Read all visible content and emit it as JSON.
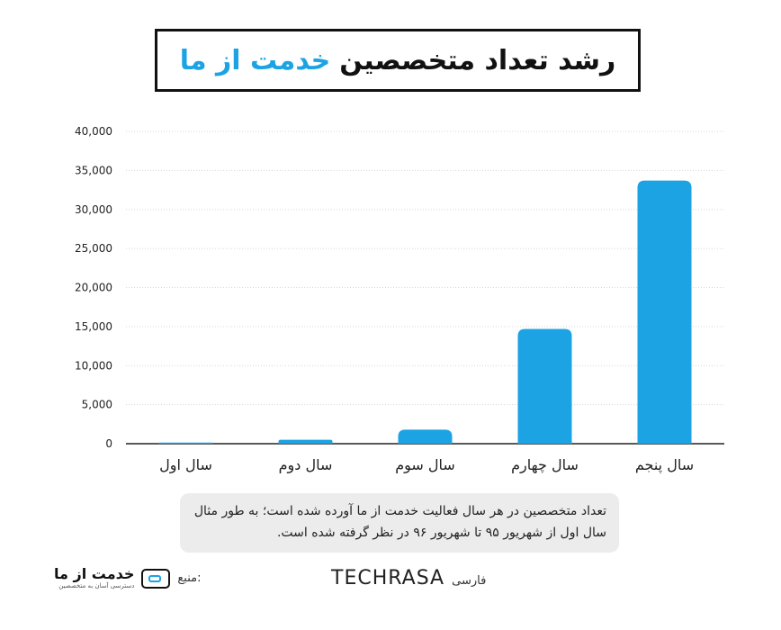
{
  "header": {
    "title_part1": "رشد تعداد متخصصین",
    "title_part2": "خدمت از ما"
  },
  "chart_data": {
    "type": "bar",
    "categories": [
      "سال اول",
      "سال دوم",
      "سال سوم",
      "سال چهارم",
      "سال پنجم"
    ],
    "values": [
      150,
      500,
      1800,
      14700,
      33700
    ],
    "ylim": [
      0,
      40000
    ],
    "yticks": [
      0,
      5000,
      10000,
      15000,
      20000,
      25000,
      30000,
      35000,
      40000
    ],
    "ytick_labels": [
      "0",
      "5,000",
      "10,000",
      "15,000",
      "20,000",
      "25,000",
      "30,000",
      "35,000",
      "40,000"
    ],
    "grid": true,
    "bar_color": "#1ca3e3"
  },
  "note": {
    "text": "تعداد متخصصین در هر سال فعالیت خدمت از ما آورده شده است؛ به طور مثال سال اول از شهریور ۹۵ تا شهریور ۹۶ در نظر گرفته شده است."
  },
  "footer": {
    "brand": "TECHRASA",
    "brand_lang": "فارسی",
    "source_label": "منبع:",
    "logo_text": "خدمت از ما",
    "logo_subtext": "دسترسی آسان به متخصصین"
  },
  "colors": {
    "accent": "#1ca3e3",
    "text": "#111111",
    "note_bg": "#ececec"
  }
}
